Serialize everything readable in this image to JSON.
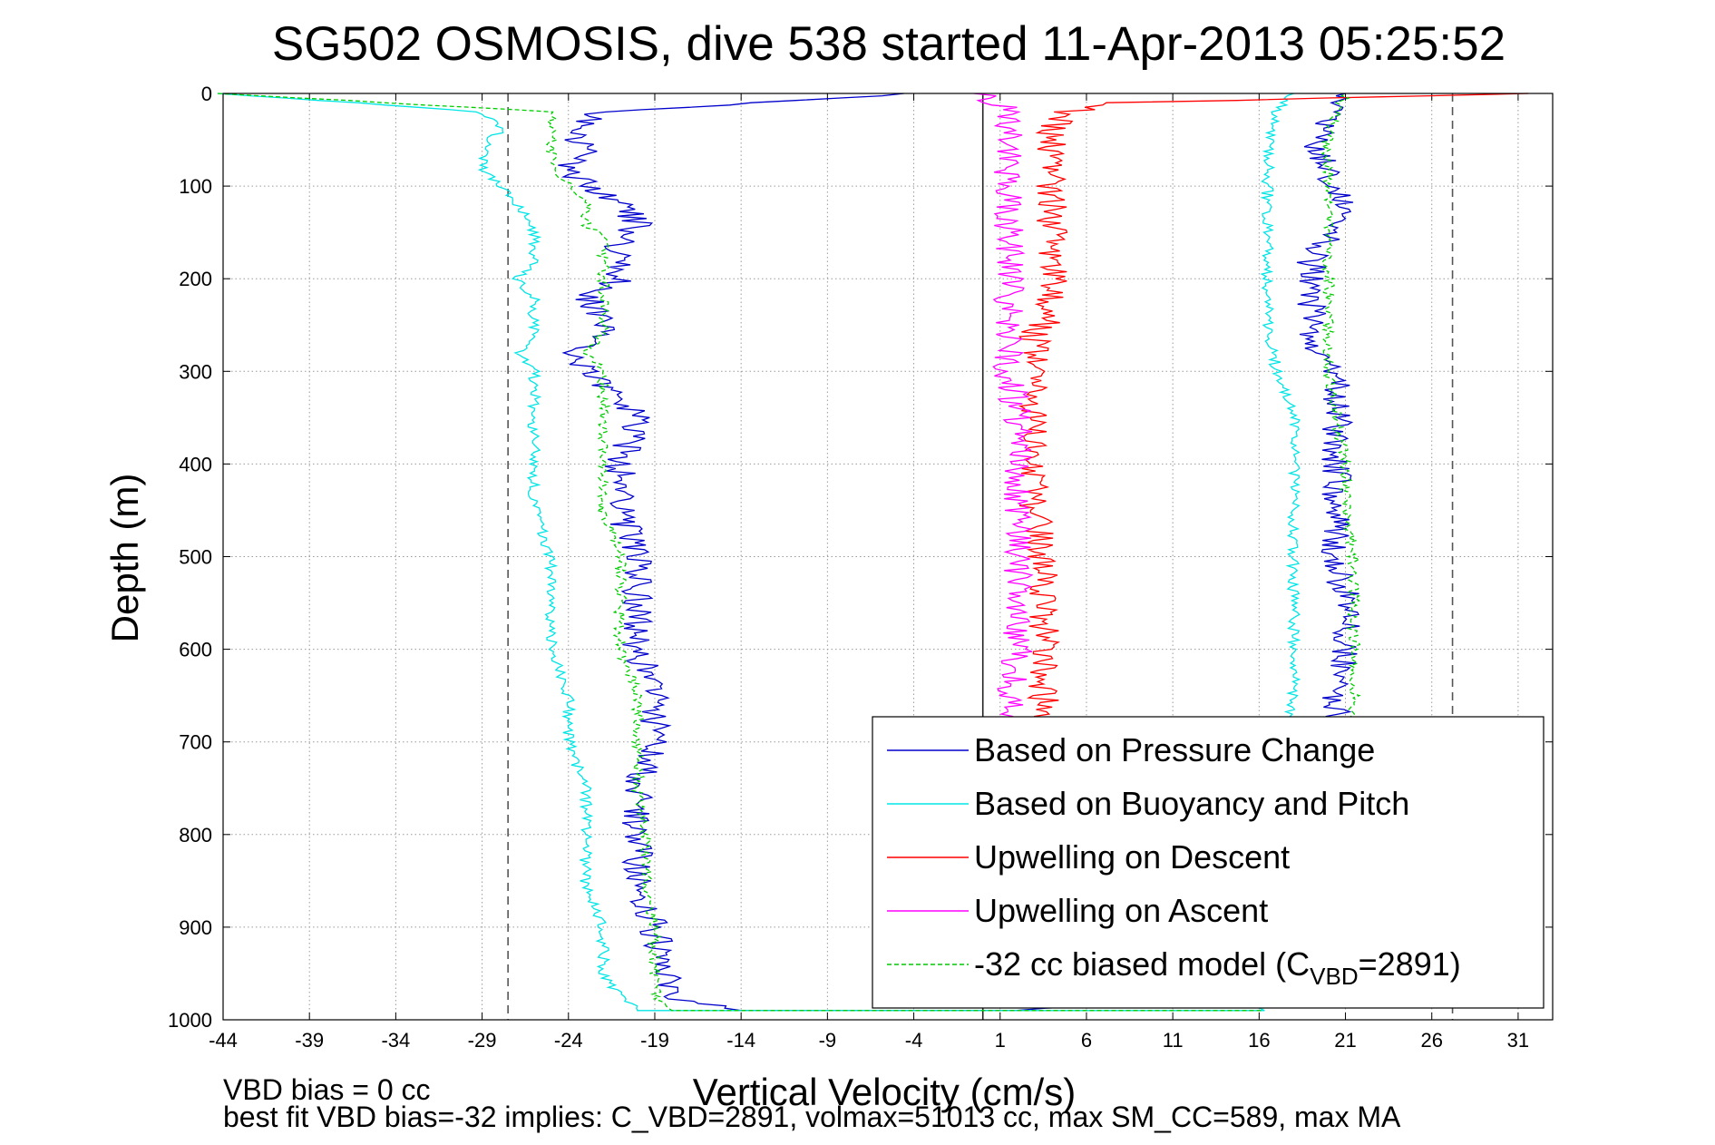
{
  "chart_data": {
    "type": "line",
    "title": "SG502 OSMOSIS, dive 538 started 11-Apr-2013 05:25:52",
    "xlabel": "Vertical Velocity (cm/s)",
    "ylabel": "Depth (m)",
    "xlim": [
      -44,
      33
    ],
    "ylim": [
      0,
      1000
    ],
    "y_reversed": true,
    "grid": true,
    "x_ticks": [
      "-44",
      "-39",
      "-34",
      "-29",
      "-24",
      "-19",
      "-14",
      "-9",
      "-4",
      "1",
      "6",
      "11",
      "16",
      "21",
      "26",
      "31"
    ],
    "y_ticks": [
      "0",
      "100",
      "200",
      "300",
      "400",
      "500",
      "600",
      "700",
      "800",
      "900",
      "1000"
    ],
    "reference_lines": [
      {
        "style": "dashed",
        "x": -27.5
      },
      {
        "style": "solid",
        "x": 0
      },
      {
        "style": "dashed",
        "x": 27.2
      }
    ],
    "legend_position": "bottom-right",
    "series": [
      {
        "name": "Based on Pressure Change",
        "color": "#0000cc",
        "style": "solid",
        "depth": [
          0,
          20,
          40,
          60,
          80,
          100,
          120,
          140,
          160,
          180,
          200,
          220,
          240,
          260,
          280,
          300,
          350,
          400,
          450,
          500,
          550,
          600,
          650,
          700,
          750,
          800,
          850,
          900,
          950,
          975,
          990,
          990,
          975,
          950,
          900,
          850,
          800,
          750,
          700,
          650,
          600,
          550,
          500,
          450,
          400,
          350,
          300,
          280,
          260,
          240,
          220,
          200,
          180,
          160,
          140,
          120,
          100,
          80,
          60,
          40,
          20,
          0
        ],
        "x": [
          -4,
          -22,
          -24,
          -23,
          -24,
          -23,
          -21,
          -20,
          -21,
          -21,
          -21,
          -23,
          -22,
          -22,
          -24,
          -23,
          -20,
          -21,
          -21,
          -20,
          -20,
          -20,
          -19,
          -19,
          -20,
          -20,
          -20,
          -19,
          -18.5,
          -18,
          -14,
          2,
          16,
          20,
          20.5,
          20.5,
          20.5,
          20.5,
          20.5,
          20.5,
          21,
          21,
          20.5,
          20.5,
          20.5,
          20.5,
          20.5,
          19,
          19,
          19,
          19,
          19,
          19,
          20,
          20,
          21,
          20,
          20,
          19,
          20,
          20,
          21
        ]
      },
      {
        "name": "Based on Buoyancy and Pitch",
        "color": "#00e5e5",
        "style": "solid",
        "depth": [
          0,
          20,
          40,
          60,
          80,
          100,
          120,
          140,
          160,
          180,
          200,
          220,
          240,
          260,
          280,
          300,
          350,
          400,
          450,
          500,
          550,
          600,
          650,
          700,
          750,
          800,
          850,
          900,
          950,
          975,
          990,
          990,
          975,
          950,
          900,
          850,
          800,
          750,
          700,
          650,
          600,
          550,
          500,
          450,
          400,
          350,
          300,
          250,
          200,
          150,
          100,
          50,
          20,
          0
        ],
        "x": [
          -44,
          -29,
          -28,
          -29,
          -29,
          -28,
          -27,
          -26,
          -26,
          -26,
          -27,
          -26,
          -26,
          -26,
          -27,
          -26,
          -26,
          -26,
          -26,
          -25,
          -25,
          -25,
          -24,
          -24,
          -23,
          -23,
          -23,
          -22,
          -22,
          -21,
          -20,
          16,
          17.5,
          17.5,
          17.5,
          17.5,
          17.5,
          17.5,
          17.5,
          18,
          18,
          18,
          18,
          18,
          18,
          18,
          17,
          16.5,
          16.5,
          16.5,
          16.5,
          16.5,
          17,
          18
        ]
      },
      {
        "name": "Upwelling on Descent",
        "color": "#ff0000",
        "style": "solid",
        "depth": [
          0,
          10,
          20,
          40,
          60,
          80,
          100,
          120,
          140,
          160,
          180,
          200,
          220,
          240,
          260,
          280,
          300,
          350,
          400,
          450,
          500,
          550,
          600,
          650,
          680
        ],
        "x": [
          32,
          8,
          5,
          4,
          4,
          4,
          4,
          4,
          4,
          4,
          4,
          4,
          4,
          4,
          3,
          3,
          3,
          3,
          3,
          3,
          3.5,
          3.5,
          3.5,
          3.5,
          3.5
        ]
      },
      {
        "name": "Upwelling on Ascent",
        "color": "#ff00ff",
        "style": "solid",
        "depth": [
          0,
          20,
          40,
          60,
          80,
          100,
          120,
          140,
          160,
          180,
          200,
          220,
          240,
          260,
          280,
          300,
          350,
          400,
          450,
          500,
          550,
          600,
          650,
          680
        ],
        "x": [
          0,
          1.5,
          1.5,
          1.5,
          1.5,
          1.5,
          1.5,
          1.5,
          1.5,
          1.5,
          1.5,
          1.5,
          1.5,
          1.5,
          1.5,
          1.5,
          2,
          2,
          2,
          2,
          2,
          2,
          1.5,
          1.5
        ]
      },
      {
        "name": "-32 cc biased model (C",
        "name_subscript": "VBD",
        "name_suffix": "=2891)",
        "color": "#00cc00",
        "style": "dashed",
        "depth": [
          0,
          20,
          40,
          60,
          80,
          100,
          120,
          140,
          160,
          180,
          200,
          220,
          240,
          260,
          280,
          300,
          350,
          400,
          450,
          500,
          550,
          600,
          650,
          700,
          750,
          800,
          850,
          900,
          950,
          975,
          990,
          990,
          975,
          950,
          900,
          850,
          800,
          750,
          700,
          650,
          600,
          550,
          500,
          450,
          400,
          350,
          300,
          250,
          200,
          150,
          100,
          50,
          20,
          0
        ],
        "x": [
          -44,
          -25,
          -25,
          -25,
          -25,
          -24,
          -23,
          -23,
          -22,
          -22,
          -22,
          -22,
          -22,
          -22,
          -23,
          -22,
          -22,
          -22,
          -22,
          -21,
          -21,
          -21,
          -20,
          -20,
          -20,
          -19.5,
          -19.5,
          -19,
          -19,
          -19,
          -18,
          16,
          18,
          21,
          21.5,
          21.5,
          21.5,
          21.5,
          21.5,
          21.5,
          21.5,
          21.5,
          21.5,
          21,
          21,
          20.5,
          20,
          20,
          20,
          20,
          20,
          20,
          20.5,
          21
        ]
      }
    ],
    "annotations": [
      "VBD bias = 0 cc",
      "best fit VBD bias=-32 implies: C_VBD=2891, volmax=51013 cc, max SM_CC=589, max MA"
    ]
  }
}
